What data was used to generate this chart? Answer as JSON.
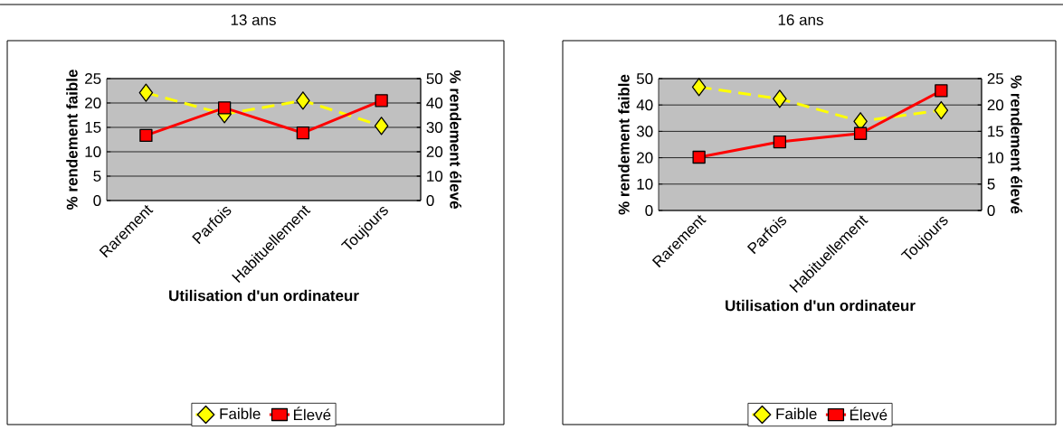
{
  "chart_data": [
    {
      "type": "line",
      "title": "13 ans",
      "xlabel": "Utilisation d'un ordinateur",
      "ylabel": "% rendement faible",
      "y2label": "% rendement élevé",
      "categories": [
        "Rarement",
        "Parfois",
        "Habituellement",
        "Toujours"
      ],
      "series": [
        {
          "name": "Faible",
          "color": "#ffff00",
          "values": [
            22.1,
            17.7,
            20.5,
            15.3
          ],
          "marker": "diamond",
          "line_style": "dashed"
        },
        {
          "name": "Élevé",
          "color": "#ff0000",
          "values": [
            26.7,
            38,
            27.7,
            41
          ],
          "marker": "square",
          "line_style": "solid",
          "axis": "y2"
        }
      ],
      "ylim": [
        0,
        25
      ],
      "yticks": [
        0,
        5,
        10,
        15,
        20,
        25
      ],
      "y2lim": [
        0,
        50
      ],
      "y2ticks": [
        0,
        10,
        20,
        30,
        40,
        50
      ],
      "grid": "y",
      "legend": "bottom"
    },
    {
      "type": "line",
      "title": "16 ans",
      "xlabel": "Utilisation d'un ordinateur",
      "ylabel": "% rendement faible",
      "y2label": "% rendement élevé",
      "categories": [
        "Rarement",
        "Parfois",
        "Habituellement",
        "Toujours"
      ],
      "series": [
        {
          "name": "Faible",
          "color": "#ffff00",
          "values": [
            46.8,
            42.3,
            33.8,
            38
          ],
          "marker": "diamond",
          "line_style": "dashed"
        },
        {
          "name": "Élevé",
          "color": "#ff0000",
          "values": [
            10.1,
            13,
            14.6,
            22.7
          ],
          "marker": "square",
          "line_style": "solid",
          "axis": "y2"
        }
      ],
      "ylim": [
        0,
        50
      ],
      "yticks": [
        0,
        10,
        20,
        30,
        40,
        50
      ],
      "y2lim": [
        0,
        25
      ],
      "y2ticks": [
        0,
        5,
        10,
        15,
        20,
        25
      ],
      "grid": "y",
      "legend": "bottom"
    }
  ]
}
